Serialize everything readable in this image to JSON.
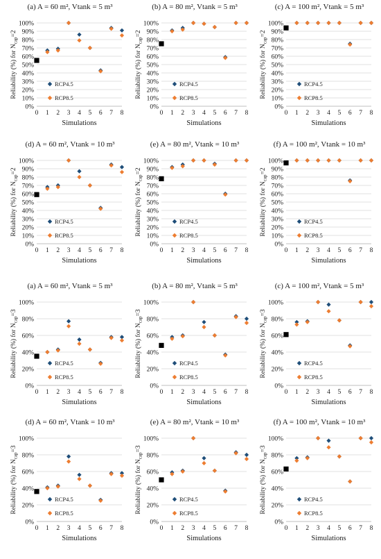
{
  "colors": {
    "rcp45": "#1f4e79",
    "rcp85": "#ed7d31",
    "baseline": "#000000",
    "grid": "#d9d9d9"
  },
  "chart_data": [
    {
      "type": "scatter",
      "title": "(a) A = 60 m², Vtank = 5 m³",
      "ylabel": "Reliability (%) for Ncap=2",
      "ylabel_main": "Reliability (%) for N",
      "ylabel_sub": "cap",
      "ylabel_suffix": "=2",
      "xlabel": "Simulations",
      "x": [
        0,
        1,
        2,
        3,
        4,
        5,
        6,
        7,
        8
      ],
      "xlim": [
        0,
        8
      ],
      "ylim": [
        0,
        100
      ],
      "ytick_labels": [
        "0%",
        "10%",
        "20%",
        "30%",
        "40%",
        "50%",
        "60%",
        "70%",
        "80%",
        "90%",
        "100%"
      ],
      "xtick_labels": [
        "0",
        "1",
        "2",
        "3",
        "4",
        "5",
        "6",
        "7",
        "8"
      ],
      "baseline": {
        "x": 0,
        "y": 55
      },
      "series": [
        {
          "name": "RCP4.5",
          "x": [
            1,
            2,
            3,
            4,
            5,
            6,
            7,
            8
          ],
          "values": [
            67,
            69,
            100,
            86,
            70,
            43,
            94,
            91
          ]
        },
        {
          "name": "RCP8.5",
          "x": [
            1,
            2,
            3,
            4,
            5,
            6,
            7,
            8
          ],
          "values": [
            65,
            67,
            100,
            79,
            70,
            42,
            93,
            85
          ]
        }
      ]
    },
    {
      "type": "scatter",
      "title": "(b) A = 80 m², Vtank = 5 m³",
      "ylabel": "Reliability (%) for Ncap=2",
      "ylabel_main": "Reliability (%) for N",
      "ylabel_sub": "cap",
      "ylabel_suffix": "=2",
      "xlabel": "Simulations",
      "x": [
        0,
        1,
        2,
        3,
        4,
        5,
        6,
        7,
        8
      ],
      "xlim": [
        0,
        8
      ],
      "ylim": [
        0,
        100
      ],
      "ytick_labels": [
        "0%",
        "10%",
        "20%",
        "30%",
        "40%",
        "50%",
        "60%",
        "70%",
        "80%",
        "90%",
        "100%"
      ],
      "xtick_labels": [
        "0",
        "1",
        "2",
        "3",
        "4",
        "5",
        "6",
        "7",
        "8"
      ],
      "baseline": {
        "x": 0,
        "y": 75
      },
      "series": [
        {
          "name": "RCP4.5",
          "x": [
            1,
            2,
            3,
            4,
            5,
            6,
            7,
            8
          ],
          "values": [
            91,
            94,
            100,
            99,
            95,
            59,
            100,
            100
          ]
        },
        {
          "name": "RCP8.5",
          "x": [
            1,
            2,
            3,
            4,
            5,
            6,
            7,
            8
          ],
          "values": [
            90,
            92,
            100,
            99,
            95,
            58,
            100,
            100
          ]
        }
      ]
    },
    {
      "type": "scatter",
      "title": "(c) A = 100 m², Vtank = 5 m³",
      "ylabel": "Reliability (%) for Ncap=2",
      "ylabel_main": "Reliability (%) for N",
      "ylabel_sub": "cap",
      "ylabel_suffix": "=2",
      "xlabel": "Simulations",
      "x": [
        0,
        1,
        2,
        3,
        4,
        5,
        6,
        7,
        8
      ],
      "xlim": [
        0,
        8
      ],
      "ylim": [
        0,
        100
      ],
      "ytick_labels": [
        "0%",
        "10%",
        "20%",
        "30%",
        "40%",
        "50%",
        "60%",
        "70%",
        "80%",
        "90%",
        "100%"
      ],
      "xtick_labels": [
        "0",
        "1",
        "2",
        "3",
        "4",
        "5",
        "6",
        "7",
        "8"
      ],
      "baseline": {
        "x": 0,
        "y": 94
      },
      "series": [
        {
          "name": "RCP4.5",
          "x": [
            1,
            2,
            3,
            4,
            5,
            6,
            7,
            8
          ],
          "values": [
            100,
            100,
            100,
            100,
            100,
            75,
            100,
            100
          ]
        },
        {
          "name": "RCP8.5",
          "x": [
            1,
            2,
            3,
            4,
            5,
            6,
            7,
            8
          ],
          "values": [
            100,
            100,
            100,
            100,
            100,
            74,
            100,
            100
          ]
        }
      ]
    },
    {
      "type": "scatter",
      "title": "(d) A = 60 m², Vtank = 10 m³",
      "ylabel": "Reliability (%) for Ncap=2",
      "ylabel_main": "Reliability (%) for N",
      "ylabel_sub": "cap",
      "ylabel_suffix": "=2",
      "xlabel": "Simulations",
      "x": [
        0,
        1,
        2,
        3,
        4,
        5,
        6,
        7,
        8
      ],
      "xlim": [
        0,
        8
      ],
      "ylim": [
        0,
        100
      ],
      "ytick_labels": [
        "0%",
        "10%",
        "20%",
        "30%",
        "40%",
        "50%",
        "60%",
        "70%",
        "80%",
        "90%",
        "100%"
      ],
      "xtick_labels": [
        "0",
        "1",
        "2",
        "3",
        "4",
        "5",
        "6",
        "7",
        "8"
      ],
      "baseline": {
        "x": 0,
        "y": 59
      },
      "series": [
        {
          "name": "RCP4.5",
          "x": [
            1,
            2,
            3,
            4,
            5,
            6,
            7,
            8
          ],
          "values": [
            68,
            70,
            100,
            87,
            70,
            43,
            95,
            92
          ]
        },
        {
          "name": "RCP8.5",
          "x": [
            1,
            2,
            3,
            4,
            5,
            6,
            7,
            8
          ],
          "values": [
            66,
            68,
            100,
            80,
            70,
            42,
            94,
            86
          ]
        }
      ]
    },
    {
      "type": "scatter",
      "title": "(e) A = 80 m², Vtank = 10 m³",
      "ylabel": "Reliability (%) for Ncap=2",
      "ylabel_main": "Reliability (%) for N",
      "ylabel_sub": "cap",
      "ylabel_suffix": "=2",
      "xlabel": "Simulations",
      "x": [
        0,
        1,
        2,
        3,
        4,
        5,
        6,
        7,
        8
      ],
      "xlim": [
        0,
        8
      ],
      "ylim": [
        0,
        100
      ],
      "ytick_labels": [
        "0%",
        "10%",
        "20%",
        "30%",
        "40%",
        "50%",
        "60%",
        "70%",
        "80%",
        "90%",
        "100%"
      ],
      "xtick_labels": [
        "0",
        "1",
        "2",
        "3",
        "4",
        "5",
        "6",
        "7",
        "8"
      ],
      "baseline": {
        "x": 0,
        "y": 78
      },
      "series": [
        {
          "name": "RCP4.5",
          "x": [
            1,
            2,
            3,
            4,
            5,
            6,
            7,
            8
          ],
          "values": [
            92,
            95,
            100,
            100,
            96,
            60,
            100,
            100
          ]
        },
        {
          "name": "RCP8.5",
          "x": [
            1,
            2,
            3,
            4,
            5,
            6,
            7,
            8
          ],
          "values": [
            91,
            93,
            100,
            100,
            95,
            59,
            100,
            100
          ]
        }
      ]
    },
    {
      "type": "scatter",
      "title": "(f) A = 100 m², Vtank = 10 m³",
      "ylabel": "Reliability (%) for Ncap=2",
      "ylabel_main": "Reliability (%) for N",
      "ylabel_sub": "cap",
      "ylabel_suffix": "=2",
      "xlabel": "Simulations",
      "x": [
        0,
        1,
        2,
        3,
        4,
        5,
        6,
        7,
        8
      ],
      "xlim": [
        0,
        8
      ],
      "ylim": [
        0,
        100
      ],
      "ytick_labels": [
        "0%",
        "10%",
        "20%",
        "30%",
        "40%",
        "50%",
        "60%",
        "70%",
        "80%",
        "90%",
        "100%"
      ],
      "xtick_labels": [
        "0",
        "1",
        "2",
        "3",
        "4",
        "5",
        "6",
        "7",
        "8"
      ],
      "baseline": {
        "x": 0,
        "y": 97
      },
      "series": [
        {
          "name": "RCP4.5",
          "x": [
            1,
            2,
            3,
            4,
            5,
            6,
            7,
            8
          ],
          "values": [
            100,
            100,
            100,
            100,
            100,
            76,
            100,
            100
          ]
        },
        {
          "name": "RCP8.5",
          "x": [
            1,
            2,
            3,
            4,
            5,
            6,
            7,
            8
          ],
          "values": [
            100,
            100,
            100,
            100,
            100,
            75,
            100,
            100
          ]
        }
      ]
    },
    {
      "type": "scatter",
      "title": "(a) A = 60 m², Vtank = 5 m³",
      "ylabel": "Reliability (%) for Ncap=3",
      "ylabel_main": "Reliability (%) for N",
      "ylabel_sub": "cap",
      "ylabel_suffix": "=3",
      "xlabel": "Simulations",
      "x": [
        0,
        1,
        2,
        3,
        4,
        5,
        6,
        7,
        8
      ],
      "xlim": [
        0,
        8
      ],
      "ylim": [
        0,
        100
      ],
      "ytick_labels": [
        "0%",
        "20%",
        "40%",
        "60%",
        "80%",
        "100%"
      ],
      "xtick_labels": [
        "0",
        "1",
        "2",
        "3",
        "4",
        "5",
        "6",
        "7",
        "8"
      ],
      "baseline": {
        "x": 0,
        "y": 35
      },
      "series": [
        {
          "name": "RCP4.5",
          "x": [
            1,
            2,
            3,
            4,
            5,
            6,
            7,
            8
          ],
          "values": [
            40,
            43,
            77,
            55,
            43,
            27,
            58,
            58
          ]
        },
        {
          "name": "RCP8.5",
          "x": [
            1,
            2,
            3,
            4,
            5,
            6,
            7,
            8
          ],
          "values": [
            40,
            42,
            71,
            50,
            43,
            26,
            57,
            54
          ]
        }
      ]
    },
    {
      "type": "scatter",
      "title": "(b) A = 80 m², Vtank = 5 m³",
      "ylabel": "Reliability (%) for Ncap=3",
      "ylabel_main": "Reliability (%) for N",
      "ylabel_sub": "cap",
      "ylabel_suffix": "=3",
      "xlabel": "Simulations",
      "x": [
        0,
        1,
        2,
        3,
        4,
        5,
        6,
        7,
        8
      ],
      "xlim": [
        0,
        8
      ],
      "ylim": [
        0,
        100
      ],
      "ytick_labels": [
        "0%",
        "20%",
        "40%",
        "60%",
        "80%",
        "100%"
      ],
      "xtick_labels": [
        "0",
        "1",
        "2",
        "3",
        "4",
        "5",
        "6",
        "7",
        "8"
      ],
      "baseline": {
        "x": 0,
        "y": 48
      },
      "series": [
        {
          "name": "RCP4.5",
          "x": [
            1,
            2,
            3,
            4,
            5,
            6,
            7,
            8
          ],
          "values": [
            58,
            60,
            100,
            76,
            60,
            37,
            83,
            80
          ]
        },
        {
          "name": "RCP8.5",
          "x": [
            1,
            2,
            3,
            4,
            5,
            6,
            7,
            8
          ],
          "values": [
            56,
            59,
            100,
            70,
            60,
            36,
            82,
            75
          ]
        }
      ]
    },
    {
      "type": "scatter",
      "title": "(c) A = 100 m², Vtank = 5 m³",
      "ylabel": "Reliability (%) for Ncap=3",
      "ylabel_main": "Reliability (%) for N",
      "ylabel_sub": "cap",
      "ylabel_suffix": "=3",
      "xlabel": "Simulations",
      "x": [
        0,
        1,
        2,
        3,
        4,
        5,
        6,
        7,
        8
      ],
      "xlim": [
        0,
        8
      ],
      "ylim": [
        0,
        100
      ],
      "ytick_labels": [
        "0%",
        "20%",
        "40%",
        "60%",
        "80%",
        "100%"
      ],
      "xtick_labels": [
        "0",
        "1",
        "2",
        "3",
        "4",
        "5",
        "6",
        "7",
        "8"
      ],
      "baseline": {
        "x": 0,
        "y": 61
      },
      "series": [
        {
          "name": "RCP4.5",
          "x": [
            1,
            2,
            3,
            4,
            5,
            6,
            7,
            8
          ],
          "values": [
            76,
            77,
            100,
            97,
            78,
            48,
            100,
            100
          ]
        },
        {
          "name": "RCP8.5",
          "x": [
            1,
            2,
            3,
            4,
            5,
            6,
            7,
            8
          ],
          "values": [
            73,
            76,
            100,
            89,
            78,
            47,
            100,
            95
          ]
        }
      ]
    },
    {
      "type": "scatter",
      "title": "(d) A = 60 m², Vtank = 10 m³",
      "ylabel": "Reliability (%) for Ncap=3",
      "ylabel_main": "Reliability (%) for N",
      "ylabel_sub": "cap",
      "ylabel_suffix": "=3",
      "xlabel": "Simulations",
      "x": [
        0,
        1,
        2,
        3,
        4,
        5,
        6,
        7,
        8
      ],
      "xlim": [
        0,
        8
      ],
      "ylim": [
        0,
        100
      ],
      "ytick_labels": [
        "0%",
        "20%",
        "40%",
        "60%",
        "80%",
        "100%"
      ],
      "xtick_labels": [
        "0",
        "1",
        "2",
        "3",
        "4",
        "5",
        "6",
        "7",
        "8"
      ],
      "baseline": {
        "x": 0,
        "y": 36
      },
      "series": [
        {
          "name": "RCP4.5",
          "x": [
            1,
            2,
            3,
            4,
            5,
            6,
            7,
            8
          ],
          "values": [
            41,
            43,
            78,
            56,
            43,
            26,
            58,
            58
          ]
        },
        {
          "name": "RCP8.5",
          "x": [
            1,
            2,
            3,
            4,
            5,
            6,
            7,
            8
          ],
          "values": [
            40,
            42,
            72,
            51,
            43,
            25,
            57,
            55
          ]
        }
      ]
    },
    {
      "type": "scatter",
      "title": "(e) A = 80 m², Vtank = 10 m³",
      "ylabel": "Reliability (%) for Ncap=3",
      "ylabel_main": "Reliability (%) for N",
      "ylabel_sub": "cap",
      "ylabel_suffix": "=3",
      "xlabel": "Simulations",
      "x": [
        0,
        1,
        2,
        3,
        4,
        5,
        6,
        7,
        8
      ],
      "xlim": [
        0,
        8
      ],
      "ylim": [
        0,
        100
      ],
      "ytick_labels": [
        "0%",
        "20%",
        "40%",
        "60%",
        "80%",
        "100%"
      ],
      "xtick_labels": [
        "0",
        "1",
        "2",
        "3",
        "4",
        "5",
        "6",
        "7",
        "8"
      ],
      "baseline": {
        "x": 0,
        "y": 50
      },
      "series": [
        {
          "name": "RCP4.5",
          "x": [
            1,
            2,
            3,
            4,
            5,
            6,
            7,
            8
          ],
          "values": [
            59,
            61,
            100,
            76,
            61,
            37,
            83,
            80
          ]
        },
        {
          "name": "RCP8.5",
          "x": [
            1,
            2,
            3,
            4,
            5,
            6,
            7,
            8
          ],
          "values": [
            57,
            60,
            100,
            70,
            61,
            36,
            82,
            75
          ]
        }
      ]
    },
    {
      "type": "scatter",
      "title": "(f) A = 100 m², Vtank = 10 m³",
      "ylabel": "Reliability (%) for Ncap=3",
      "ylabel_main": "Reliability (%) for N",
      "ylabel_sub": "cap",
      "ylabel_suffix": "=3",
      "xlabel": "Simulations",
      "x": [
        0,
        1,
        2,
        3,
        4,
        5,
        6,
        7,
        8
      ],
      "xlim": [
        0,
        8
      ],
      "ylim": [
        0,
        100
      ],
      "ytick_labels": [
        "0%",
        "20%",
        "40%",
        "60%",
        "80%",
        "100%"
      ],
      "xtick_labels": [
        "0",
        "1",
        "2",
        "3",
        "4",
        "5",
        "6",
        "7",
        "8"
      ],
      "baseline": {
        "x": 0,
        "y": 63
      },
      "series": [
        {
          "name": "RCP4.5",
          "x": [
            1,
            2,
            3,
            4,
            5,
            6,
            7,
            8
          ],
          "values": [
            76,
            77,
            100,
            97,
            78,
            48,
            100,
            100
          ]
        },
        {
          "name": "RCP8.5",
          "x": [
            1,
            2,
            3,
            4,
            5,
            6,
            7,
            8
          ],
          "values": [
            73,
            76,
            100,
            89,
            78,
            48,
            100,
            95
          ]
        }
      ]
    }
  ]
}
